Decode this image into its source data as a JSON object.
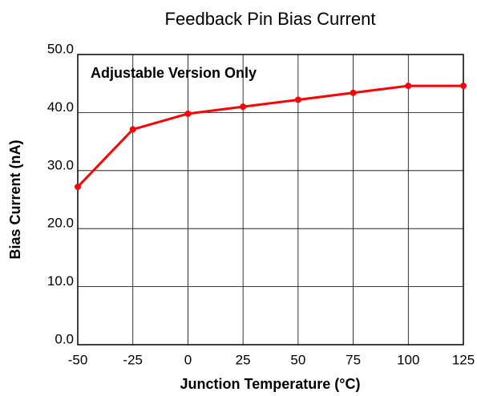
{
  "chart_data": {
    "type": "line",
    "title": "Feedback Pin Bias Current",
    "annotation": "Adjustable Version Only",
    "x_label": "Junction Temperature (°C)",
    "y_label": "Bias Current (nA)",
    "x": [
      -50,
      -25,
      0,
      25,
      50,
      75,
      100,
      125
    ],
    "series": [
      {
        "name": "Bias Current",
        "color": "#ff0000",
        "values": [
          27.2,
          37.1,
          39.8,
          41.0,
          42.2,
          43.4,
          44.6,
          44.6
        ]
      }
    ],
    "xlim": [
      -50,
      125
    ],
    "xticks": [
      -50,
      -25,
      0,
      25,
      50,
      75,
      100,
      125
    ],
    "ylim": [
      0,
      50
    ],
    "yticks": [
      {
        "value": 0,
        "label": "0.0"
      },
      {
        "value": 10,
        "label": "10.0"
      },
      {
        "value": 20,
        "label": "20.0"
      },
      {
        "value": 30,
        "label": "30.0"
      },
      {
        "value": 40,
        "label": "40.0"
      },
      {
        "value": 50,
        "label": "50.0"
      }
    ],
    "grid": true
  }
}
